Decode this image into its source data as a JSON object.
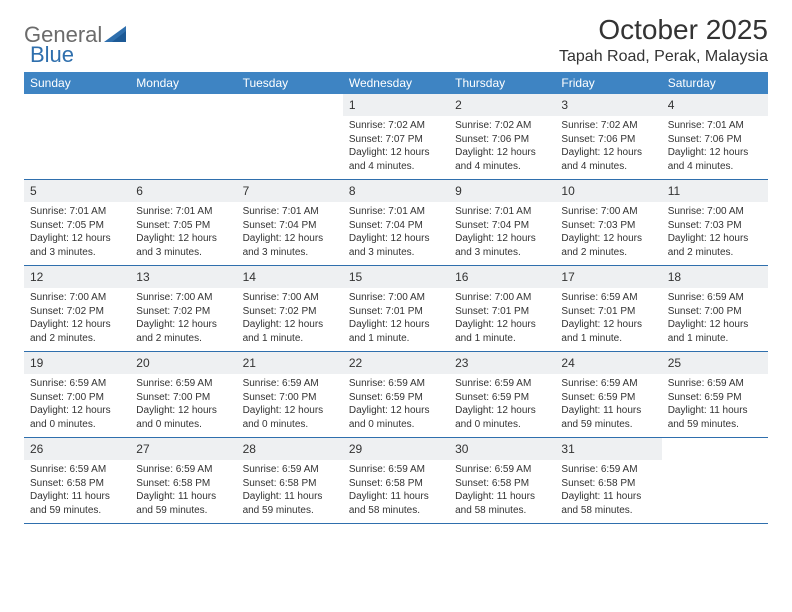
{
  "brand": {
    "word1": "General",
    "word2": "Blue"
  },
  "title": "October 2025",
  "location": "Tapah Road, Perak, Malaysia",
  "colors": {
    "header_bg": "#3e84c3",
    "divider": "#2f6fad",
    "daynum_bg": "#eef0f2",
    "text": "#333333",
    "logo_gray": "#6b6b6b",
    "logo_blue": "#2f6fad",
    "page_bg": "#ffffff"
  },
  "day_names": [
    "Sunday",
    "Monday",
    "Tuesday",
    "Wednesday",
    "Thursday",
    "Friday",
    "Saturday"
  ],
  "weeks": [
    [
      {
        "day": "",
        "lines": []
      },
      {
        "day": "",
        "lines": []
      },
      {
        "day": "",
        "lines": []
      },
      {
        "day": "1",
        "lines": [
          "Sunrise: 7:02 AM",
          "Sunset: 7:07 PM",
          "Daylight: 12 hours",
          "and 4 minutes."
        ]
      },
      {
        "day": "2",
        "lines": [
          "Sunrise: 7:02 AM",
          "Sunset: 7:06 PM",
          "Daylight: 12 hours",
          "and 4 minutes."
        ]
      },
      {
        "day": "3",
        "lines": [
          "Sunrise: 7:02 AM",
          "Sunset: 7:06 PM",
          "Daylight: 12 hours",
          "and 4 minutes."
        ]
      },
      {
        "day": "4",
        "lines": [
          "Sunrise: 7:01 AM",
          "Sunset: 7:06 PM",
          "Daylight: 12 hours",
          "and 4 minutes."
        ]
      }
    ],
    [
      {
        "day": "5",
        "lines": [
          "Sunrise: 7:01 AM",
          "Sunset: 7:05 PM",
          "Daylight: 12 hours",
          "and 3 minutes."
        ]
      },
      {
        "day": "6",
        "lines": [
          "Sunrise: 7:01 AM",
          "Sunset: 7:05 PM",
          "Daylight: 12 hours",
          "and 3 minutes."
        ]
      },
      {
        "day": "7",
        "lines": [
          "Sunrise: 7:01 AM",
          "Sunset: 7:04 PM",
          "Daylight: 12 hours",
          "and 3 minutes."
        ]
      },
      {
        "day": "8",
        "lines": [
          "Sunrise: 7:01 AM",
          "Sunset: 7:04 PM",
          "Daylight: 12 hours",
          "and 3 minutes."
        ]
      },
      {
        "day": "9",
        "lines": [
          "Sunrise: 7:01 AM",
          "Sunset: 7:04 PM",
          "Daylight: 12 hours",
          "and 3 minutes."
        ]
      },
      {
        "day": "10",
        "lines": [
          "Sunrise: 7:00 AM",
          "Sunset: 7:03 PM",
          "Daylight: 12 hours",
          "and 2 minutes."
        ]
      },
      {
        "day": "11",
        "lines": [
          "Sunrise: 7:00 AM",
          "Sunset: 7:03 PM",
          "Daylight: 12 hours",
          "and 2 minutes."
        ]
      }
    ],
    [
      {
        "day": "12",
        "lines": [
          "Sunrise: 7:00 AM",
          "Sunset: 7:02 PM",
          "Daylight: 12 hours",
          "and 2 minutes."
        ]
      },
      {
        "day": "13",
        "lines": [
          "Sunrise: 7:00 AM",
          "Sunset: 7:02 PM",
          "Daylight: 12 hours",
          "and 2 minutes."
        ]
      },
      {
        "day": "14",
        "lines": [
          "Sunrise: 7:00 AM",
          "Sunset: 7:02 PM",
          "Daylight: 12 hours",
          "and 1 minute."
        ]
      },
      {
        "day": "15",
        "lines": [
          "Sunrise: 7:00 AM",
          "Sunset: 7:01 PM",
          "Daylight: 12 hours",
          "and 1 minute."
        ]
      },
      {
        "day": "16",
        "lines": [
          "Sunrise: 7:00 AM",
          "Sunset: 7:01 PM",
          "Daylight: 12 hours",
          "and 1 minute."
        ]
      },
      {
        "day": "17",
        "lines": [
          "Sunrise: 6:59 AM",
          "Sunset: 7:01 PM",
          "Daylight: 12 hours",
          "and 1 minute."
        ]
      },
      {
        "day": "18",
        "lines": [
          "Sunrise: 6:59 AM",
          "Sunset: 7:00 PM",
          "Daylight: 12 hours",
          "and 1 minute."
        ]
      }
    ],
    [
      {
        "day": "19",
        "lines": [
          "Sunrise: 6:59 AM",
          "Sunset: 7:00 PM",
          "Daylight: 12 hours",
          "and 0 minutes."
        ]
      },
      {
        "day": "20",
        "lines": [
          "Sunrise: 6:59 AM",
          "Sunset: 7:00 PM",
          "Daylight: 12 hours",
          "and 0 minutes."
        ]
      },
      {
        "day": "21",
        "lines": [
          "Sunrise: 6:59 AM",
          "Sunset: 7:00 PM",
          "Daylight: 12 hours",
          "and 0 minutes."
        ]
      },
      {
        "day": "22",
        "lines": [
          "Sunrise: 6:59 AM",
          "Sunset: 6:59 PM",
          "Daylight: 12 hours",
          "and 0 minutes."
        ]
      },
      {
        "day": "23",
        "lines": [
          "Sunrise: 6:59 AM",
          "Sunset: 6:59 PM",
          "Daylight: 12 hours",
          "and 0 minutes."
        ]
      },
      {
        "day": "24",
        "lines": [
          "Sunrise: 6:59 AM",
          "Sunset: 6:59 PM",
          "Daylight: 11 hours",
          "and 59 minutes."
        ]
      },
      {
        "day": "25",
        "lines": [
          "Sunrise: 6:59 AM",
          "Sunset: 6:59 PM",
          "Daylight: 11 hours",
          "and 59 minutes."
        ]
      }
    ],
    [
      {
        "day": "26",
        "lines": [
          "Sunrise: 6:59 AM",
          "Sunset: 6:58 PM",
          "Daylight: 11 hours",
          "and 59 minutes."
        ]
      },
      {
        "day": "27",
        "lines": [
          "Sunrise: 6:59 AM",
          "Sunset: 6:58 PM",
          "Daylight: 11 hours",
          "and 59 minutes."
        ]
      },
      {
        "day": "28",
        "lines": [
          "Sunrise: 6:59 AM",
          "Sunset: 6:58 PM",
          "Daylight: 11 hours",
          "and 59 minutes."
        ]
      },
      {
        "day": "29",
        "lines": [
          "Sunrise: 6:59 AM",
          "Sunset: 6:58 PM",
          "Daylight: 11 hours",
          "and 58 minutes."
        ]
      },
      {
        "day": "30",
        "lines": [
          "Sunrise: 6:59 AM",
          "Sunset: 6:58 PM",
          "Daylight: 11 hours",
          "and 58 minutes."
        ]
      },
      {
        "day": "31",
        "lines": [
          "Sunrise: 6:59 AM",
          "Sunset: 6:58 PM",
          "Daylight: 11 hours",
          "and 58 minutes."
        ]
      },
      {
        "day": "",
        "lines": []
      }
    ]
  ]
}
